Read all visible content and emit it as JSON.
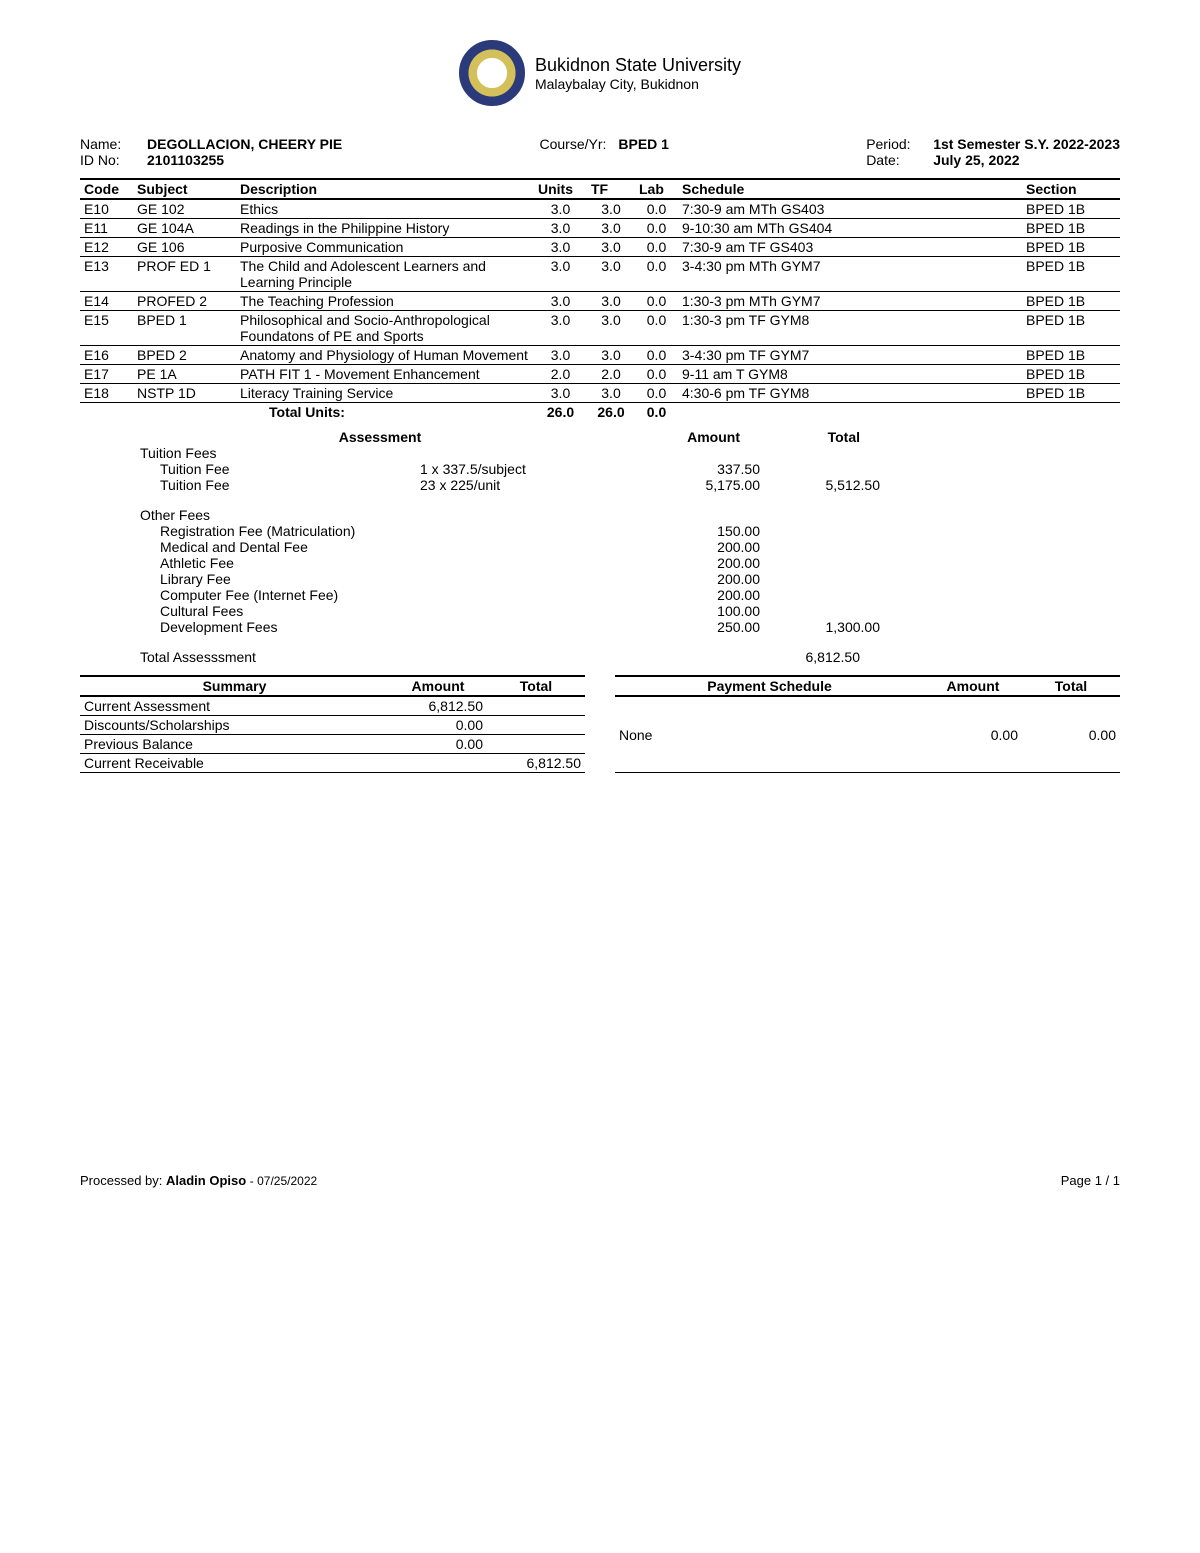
{
  "university": {
    "name": "Bukidnon State University",
    "location": "Malaybalay City, Bukidnon"
  },
  "student": {
    "name_label": "Name:",
    "name": "DEGOLLACION, CHEERY PIE",
    "id_label": "ID No:",
    "id": "2101103255",
    "course_label": "Course/Yr:",
    "course": "BPED 1",
    "period_label": "Period:",
    "period": "1st Semester S.Y. 2022-2023",
    "date_label": "Date:",
    "date": "July 25, 2022"
  },
  "columns": {
    "code": "Code",
    "subject": "Subject",
    "description": "Description",
    "units": "Units",
    "tf": "TF",
    "lab": "Lab",
    "schedule": "Schedule",
    "section": "Section"
  },
  "subjects": [
    {
      "code": "E10",
      "subject": "GE 102",
      "description": "Ethics",
      "units": "3.0",
      "tf": "3.0",
      "lab": "0.0",
      "schedule": "7:30-9 am MTh GS403",
      "section": "BPED 1B"
    },
    {
      "code": "E11",
      "subject": "GE 104A",
      "description": "Readings in the Philippine History",
      "units": "3.0",
      "tf": "3.0",
      "lab": "0.0",
      "schedule": "9-10:30 am MTh GS404",
      "section": "BPED 1B"
    },
    {
      "code": "E12",
      "subject": "GE 106",
      "description": "Purposive Communication",
      "units": "3.0",
      "tf": "3.0",
      "lab": "0.0",
      "schedule": "7:30-9 am TF GS403",
      "section": "BPED 1B"
    },
    {
      "code": "E13",
      "subject": "PROF ED 1",
      "description": "The Child and Adolescent Learners and Learning Principle",
      "units": "3.0",
      "tf": "3.0",
      "lab": "0.0",
      "schedule": "3-4:30 pm MTh GYM7",
      "section": "BPED 1B"
    },
    {
      "code": "E14",
      "subject": "PROFED 2",
      "description": "The Teaching Profession",
      "units": "3.0",
      "tf": "3.0",
      "lab": "0.0",
      "schedule": "1:30-3 pm MTh GYM7",
      "section": "BPED 1B"
    },
    {
      "code": "E15",
      "subject": "BPED 1",
      "description": "Philosophical and Socio-Anthropological Foundatons of PE and Sports",
      "units": "3.0",
      "tf": "3.0",
      "lab": "0.0",
      "schedule": "1:30-3 pm TF GYM8",
      "section": "BPED 1B"
    },
    {
      "code": "E16",
      "subject": "BPED 2",
      "description": "Anatomy and Physiology of Human Movement",
      "units": "3.0",
      "tf": "3.0",
      "lab": "0.0",
      "schedule": "3-4:30 pm TF GYM7",
      "section": "BPED 1B"
    },
    {
      "code": "E17",
      "subject": "PE 1A",
      "description": "PATH FIT 1 - Movement Enhancement",
      "units": "2.0",
      "tf": "2.0",
      "lab": "0.0",
      "schedule": "9-11 am T GYM8",
      "section": "BPED 1B"
    },
    {
      "code": "E18",
      "subject": "NSTP 1D",
      "description": "Literacy Training Service",
      "units": "3.0",
      "tf": "3.0",
      "lab": "0.0",
      "schedule": "4:30-6 pm TF GYM8",
      "section": "BPED 1B"
    }
  ],
  "totals": {
    "label": "Total Units:",
    "units": "26.0",
    "tf": "26.0",
    "lab": "0.0"
  },
  "assessment": {
    "title": "Assessment",
    "amount_h": "Amount",
    "total_h": "Total",
    "tuition_header": "Tuition Fees",
    "tuition": [
      {
        "name": "Tuition Fee",
        "detail": "1 x 337.5/subject",
        "amount": "337.50",
        "total": ""
      },
      {
        "name": "Tuition Fee",
        "detail": "23 x 225/unit",
        "amount": "5,175.00",
        "total": "5,512.50"
      }
    ],
    "other_header": "Other Fees",
    "other": [
      {
        "name": "Registration Fee (Matriculation)",
        "amount": "150.00",
        "total": ""
      },
      {
        "name": "Medical and Dental Fee",
        "amount": "200.00",
        "total": ""
      },
      {
        "name": "Athletic Fee",
        "amount": "200.00",
        "total": ""
      },
      {
        "name": "Library Fee",
        "amount": "200.00",
        "total": ""
      },
      {
        "name": "Computer Fee (Internet Fee)",
        "amount": "200.00",
        "total": ""
      },
      {
        "name": "Cultural Fees",
        "amount": "100.00",
        "total": ""
      },
      {
        "name": "Development Fees",
        "amount": "250.00",
        "total": "1,300.00"
      }
    ],
    "total_label": "Total Assesssment",
    "total_value": "6,812.50"
  },
  "summary": {
    "h1": "Summary",
    "h2": "Amount",
    "h3": "Total",
    "rows": [
      {
        "label": "Current Assessment",
        "amount": "6,812.50",
        "total": ""
      },
      {
        "label": "Discounts/Scholarships",
        "amount": "0.00",
        "total": ""
      },
      {
        "label": "Previous Balance",
        "amount": "0.00",
        "total": ""
      },
      {
        "label": "Current Receivable",
        "amount": "",
        "total": "6,812.50"
      }
    ]
  },
  "payment": {
    "h1": "Payment Schedule",
    "h2": "Amount",
    "h3": "Total",
    "rows": [
      {
        "label": "None",
        "amount": "0.00",
        "total": "0.00"
      }
    ]
  },
  "footer": {
    "processed_label": "Processed by:",
    "processed_by": "Aladin Opiso",
    "processed_date": "- 07/25/2022",
    "page": "Page 1 / 1"
  }
}
